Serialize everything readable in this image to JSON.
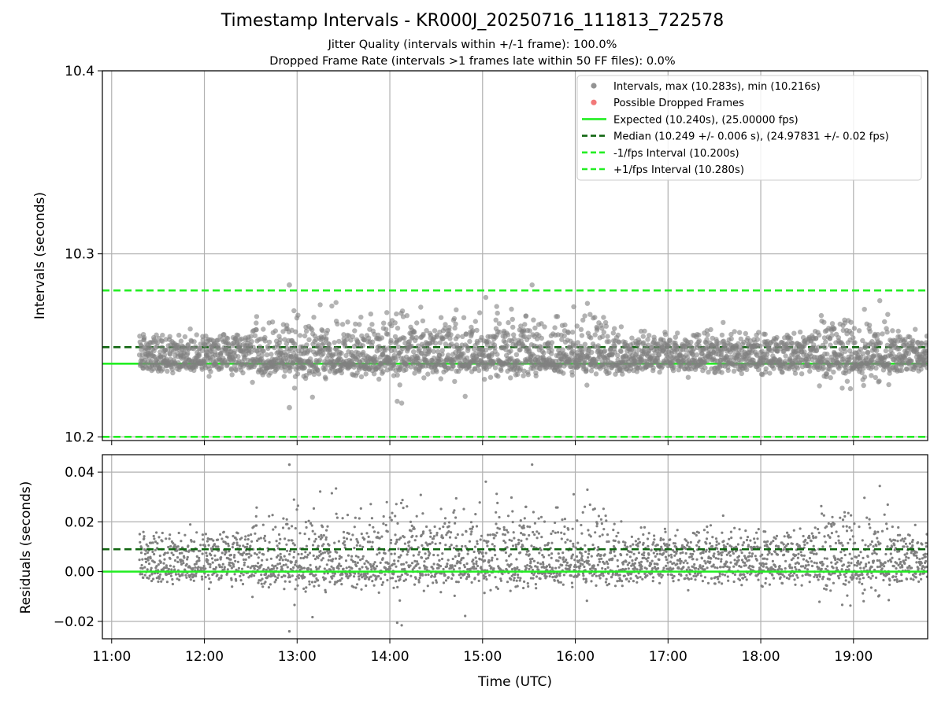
{
  "header": {
    "title": "Timestamp Intervals - KR000J_20250716_111813_722578",
    "subtitle1": "Jitter Quality (intervals within +/-1 frame): 100.0%",
    "subtitle2": "Dropped Frame Rate (intervals >1 frames late within 50 FF files): 0.0%"
  },
  "colors": {
    "points": "#808080",
    "dropped": "#f06060",
    "expected": "#22ee22",
    "median": "#116611",
    "fps_interval": "#22ee22",
    "grid": "#b0b0b0"
  },
  "chart_data": [
    {
      "type": "scatter",
      "ylabel": "Intervals (seconds)",
      "ylim": [
        10.198,
        10.4
      ],
      "yticks": [
        "10.2",
        "10.3",
        "10.4"
      ],
      "ytick_values": [
        10.2,
        10.3,
        10.4
      ],
      "x_range_hours": [
        10.9,
        19.8
      ],
      "grid": true,
      "legend_position": "top-right",
      "legend": [
        {
          "label": "Intervals, max (10.283s), min (10.216s)",
          "kind": "dot",
          "color": "#808080"
        },
        {
          "label": "Possible Dropped Frames",
          "kind": "dot",
          "color": "#f06060"
        },
        {
          "label": "Expected (10.240s), (25.00000 fps)",
          "kind": "solid",
          "color": "#22ee22"
        },
        {
          "label": "Median (10.249 +/- 0.006 s), (24.97831 +/- 0.02 fps)",
          "kind": "dashed",
          "color": "#116611"
        },
        {
          "label": "-1/fps Interval (10.200s)",
          "kind": "dashed",
          "color": "#22ee22"
        },
        {
          "label": "+1/fps Interval (10.280s)",
          "kind": "dashed",
          "color": "#22ee22"
        }
      ],
      "series": [
        {
          "name": "Intervals",
          "x_start": "11:18",
          "x_end": "19:48",
          "count": 2980,
          "max": 10.283,
          "min": 10.216,
          "center": 10.249,
          "spread": 0.006
        },
        {
          "name": "Possible Dropped Frames",
          "count": 0
        }
      ],
      "hlines": [
        {
          "name": "Expected",
          "y": 10.24,
          "style": "solid"
        },
        {
          "name": "Median",
          "y": 10.249,
          "style": "dashed"
        },
        {
          "name": "-1/fps Interval",
          "y": 10.2,
          "style": "dashed"
        },
        {
          "name": "+1/fps Interval",
          "y": 10.28,
          "style": "dashed"
        }
      ]
    },
    {
      "type": "scatter",
      "xlabel": "Time (UTC)",
      "ylabel": "Residuals (seconds)",
      "ylim": [
        -0.027,
        0.047
      ],
      "yticks": [
        "−0.02",
        "0.00",
        "0.02",
        "0.04"
      ],
      "ytick_values": [
        -0.02,
        0.0,
        0.02,
        0.04
      ],
      "xticks": [
        "11:00",
        "12:00",
        "13:00",
        "14:00",
        "15:00",
        "16:00",
        "17:00",
        "18:00",
        "19:00"
      ],
      "xtick_hours": [
        11,
        12,
        13,
        14,
        15,
        16,
        17,
        18,
        19
      ],
      "x_range_hours": [
        10.9,
        19.8
      ],
      "grid": true,
      "series": [
        {
          "name": "Residuals",
          "count": 2980,
          "max": 0.043,
          "min": -0.024,
          "center": 0.009,
          "spread": 0.006
        }
      ],
      "hlines": [
        {
          "name": "Zero",
          "y": 0.0,
          "style": "solid"
        },
        {
          "name": "Median",
          "y": 0.009,
          "style": "dashed"
        }
      ]
    }
  ]
}
